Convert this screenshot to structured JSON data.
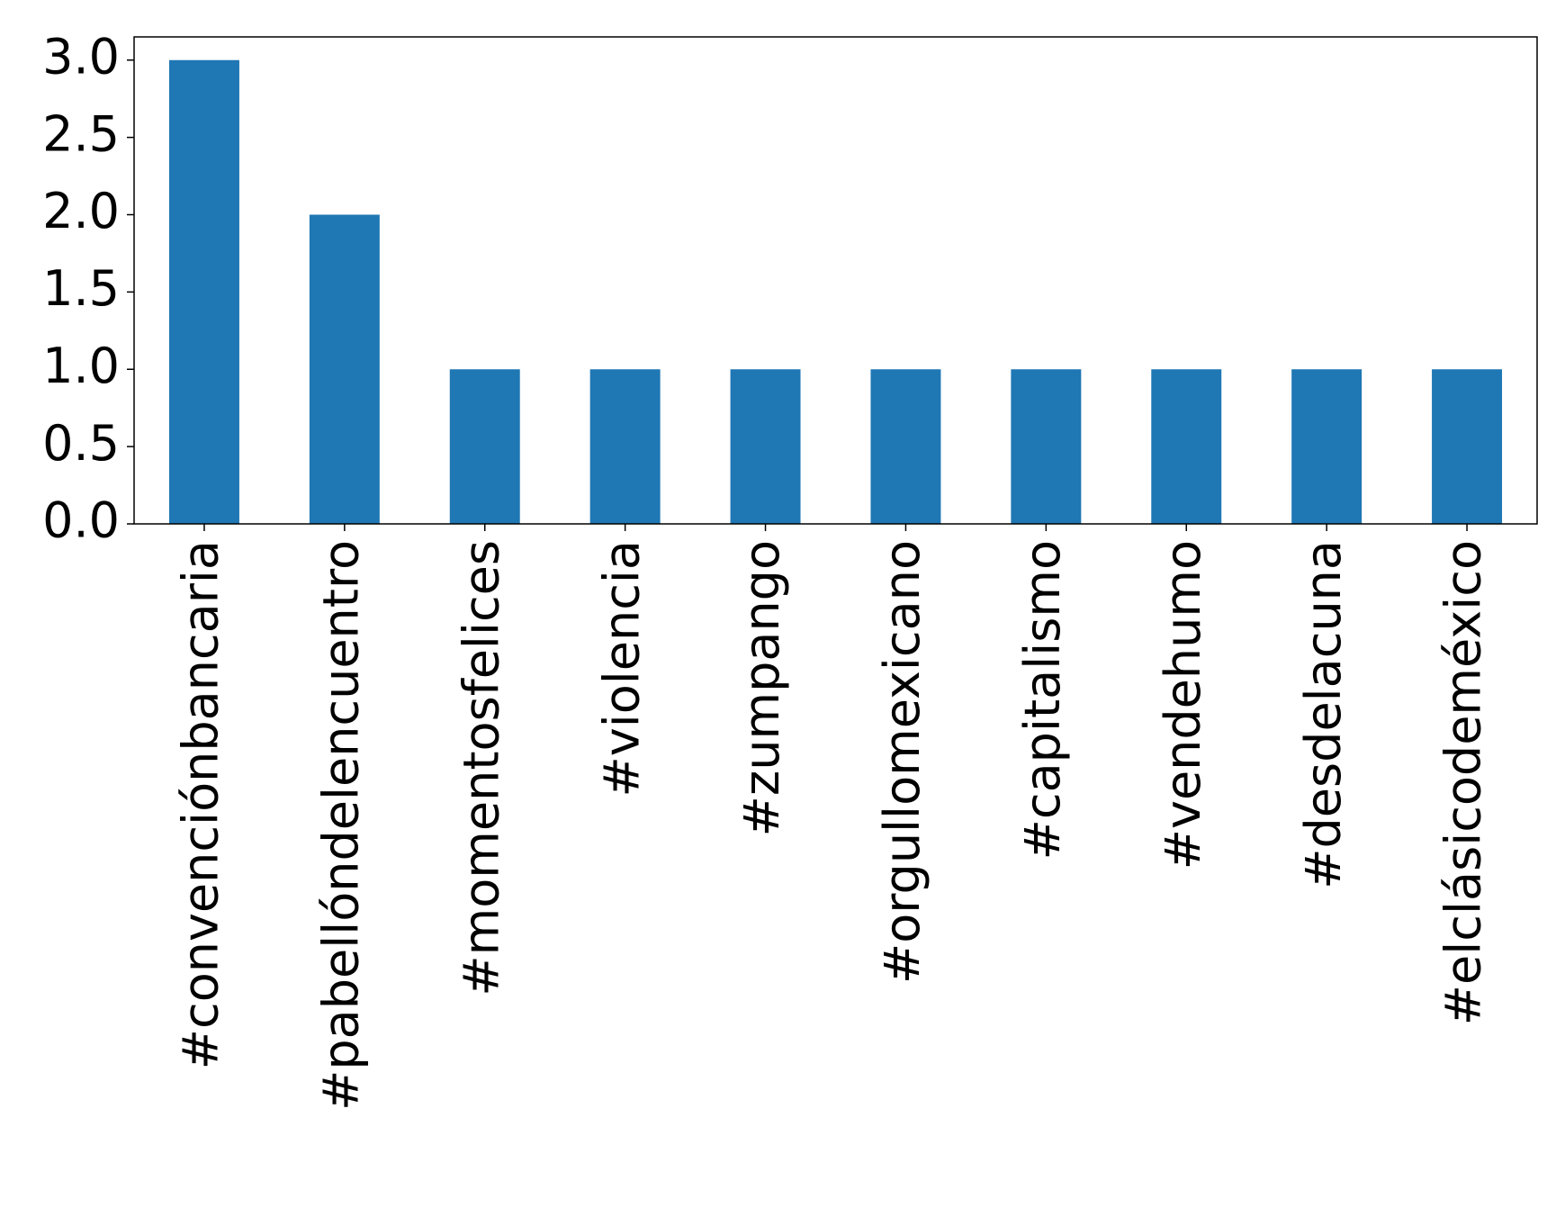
{
  "chart_data": {
    "type": "bar",
    "categories": [
      "#convenciónbancaria",
      "#pabellóndelencuentro",
      "#momentosfelices",
      "#violencia",
      "#zumpango",
      "#orgullomexicano",
      "#capitalismo",
      "#vendehumo",
      "#desdelacuna",
      "#elclásicodeméxico"
    ],
    "values": [
      3,
      2,
      1,
      1,
      1,
      1,
      1,
      1,
      1,
      1
    ],
    "color": "#1f77b4",
    "ylim": [
      0,
      3.15
    ],
    "yticks": [
      {
        "value": 0,
        "label": "0.0"
      },
      0.5,
      {
        "value": 1,
        "label": "1.0"
      },
      1.5,
      {
        "value": 2,
        "label": "2.0"
      },
      2.5,
      {
        "value": 3,
        "label": "3.0"
      }
    ],
    "grid": false
  }
}
